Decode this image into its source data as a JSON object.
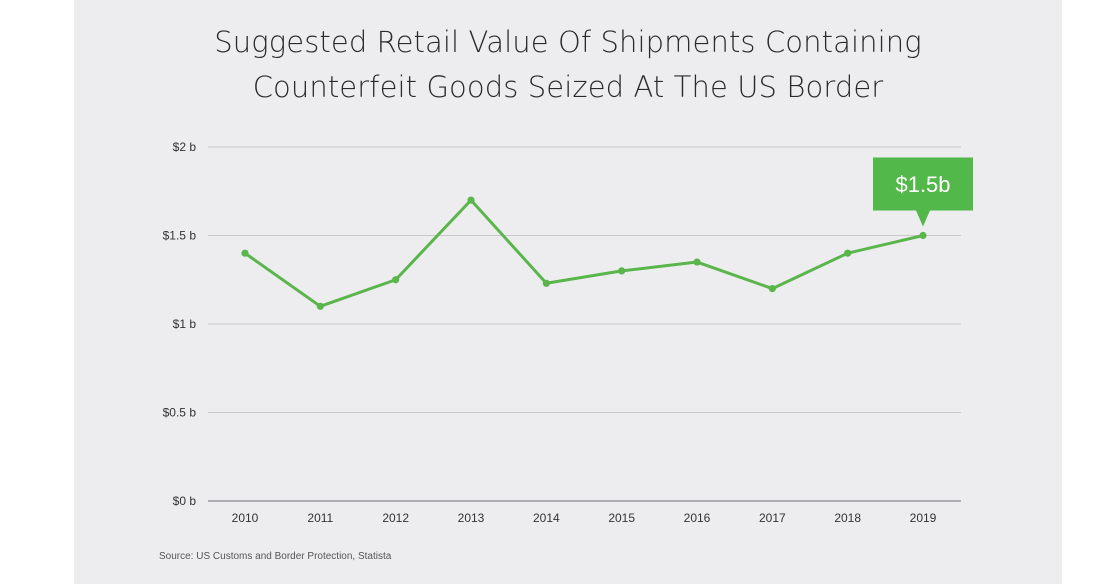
{
  "title_lines": [
    "Suggested Retail Value Of Shipments Containing",
    "Counterfeit Goods Seized At The US Border"
  ],
  "source": "Source: US Customs and Border Protection, Statista",
  "colors": {
    "line": "#5ab54b",
    "callout": "#52b84a",
    "grid": "#c9c9cc",
    "axis": "#9a9a9d",
    "background": "#ededf0"
  },
  "chart_data": {
    "type": "line",
    "title": "Suggested Retail Value Of Shipments Containing Counterfeit Goods Seized At The US Border",
    "xlabel": "",
    "ylabel": "",
    "categories": [
      "2010",
      "2011",
      "2012",
      "2013",
      "2014",
      "2015",
      "2016",
      "2017",
      "2018",
      "2019"
    ],
    "series": [
      {
        "values": [
          1.4,
          1.1,
          1.25,
          1.7,
          1.23,
          1.3,
          1.35,
          1.2,
          1.4,
          1.5
        ]
      }
    ],
    "ylim": [
      0,
      2
    ],
    "yticks": [
      0,
      0.5,
      1,
      1.5,
      2
    ],
    "ytick_labels": [
      "$0 b",
      "$0.5 b",
      "$1 b",
      "$1.5 b",
      "$2 b"
    ],
    "grid": true,
    "annotations": [
      {
        "category": "2019",
        "value": 1.5,
        "text": "$1.5b"
      }
    ]
  }
}
